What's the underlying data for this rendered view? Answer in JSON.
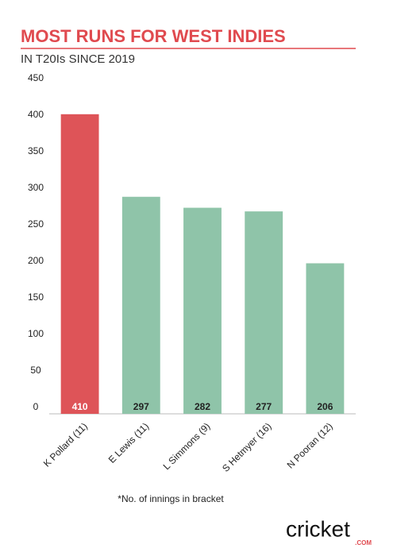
{
  "chart_data": {
    "type": "bar",
    "title": "MOST RUNS FOR WEST INDIES",
    "subtitle": "IN T20Is SINCE 2019",
    "categories": [
      "K Pollard (11)",
      "E Lewis (11)",
      "L Simmons (9)",
      "S Hetmyer (16)",
      "N Pooran (12)"
    ],
    "values": [
      410,
      297,
      282,
      277,
      206
    ],
    "colors": [
      "#de5458",
      "#8fc4a9",
      "#8fc4a9",
      "#8fc4a9",
      "#8fc4a9"
    ],
    "ylim": [
      0,
      450
    ],
    "yticks": [
      0,
      50,
      100,
      150,
      200,
      250,
      300,
      350,
      400,
      450
    ],
    "grid": false,
    "footnote": "*No. of innings in bracket",
    "logo": {
      "text": "cricket",
      "suffix": ".COM"
    }
  }
}
